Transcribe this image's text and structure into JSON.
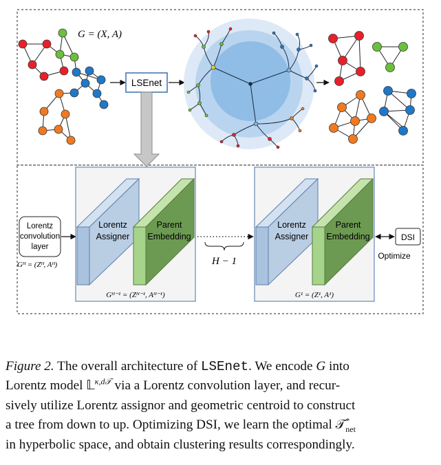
{
  "top_panel": {
    "graph_label": "G = (X, A)",
    "lsenet_label": "LSEnet"
  },
  "bottom_panel": {
    "lorentz_box_lines": [
      "Lorentz",
      "convolution",
      "layer"
    ],
    "gh_label": "Gᴴ = (Zᴴ, Aᴴ)",
    "stage1": {
      "assigner_lines": [
        "Lorentz",
        "Assigner"
      ],
      "embedding_lines": [
        "Parent",
        "Embedding"
      ],
      "g_label": "Gᴴ⁻¹ = (Zᴴ⁻¹, Aᴴ⁻¹)"
    },
    "repeat_label": "H − 1",
    "stage2": {
      "assigner_lines": [
        "Lorentz",
        "Assigner"
      ],
      "embedding_lines": [
        "Parent",
        "Embedding"
      ],
      "g_label": "G¹ = (Z¹, A¹)"
    },
    "dsi_label": "DSI",
    "optimize_label": "Optimize"
  },
  "caption": {
    "fig_label": "Figure 2.",
    "line1_a": "The overall architecture of",
    "line1_code": "LSEnet",
    "line1_b": ". We encode",
    "line1_g": "G",
    "line1_c": "into",
    "line2_a": "Lorentz model",
    "line2_math": "𝕃",
    "line2_sup": "κ,d𝒯",
    "line2_b": "via a Lorentz convolution layer, and recur-",
    "line3": "sively utilize Lorentz assignor and geometric centroid to construct",
    "line4_a": "a tree from down to up. Optimizing DSI, we learn the optimal",
    "line4_math": "𝒯",
    "line4_sup": "*",
    "line4_sub": "net",
    "line5": "in hyperbolic space, and obtain clustering results correspondingly."
  },
  "colors": {
    "red": "#e8202a",
    "green": "#6cbf3c",
    "blue": "#1f78c8",
    "orange": "#f07a22",
    "assigner_face": "#b9cde3",
    "embedding_face": "#6d9a52",
    "disk_outer": "#dde9f6",
    "disk_mid": "#b9d4ee",
    "disk_inner": "#8fbde6"
  }
}
